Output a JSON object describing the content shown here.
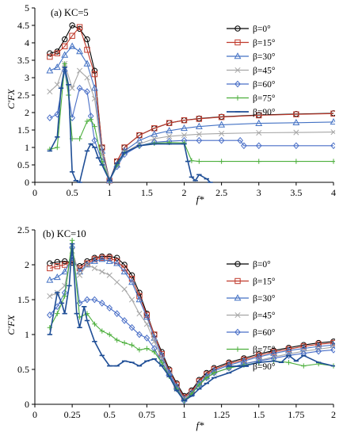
{
  "colors": {
    "b0": "#000000",
    "b15": "#c0392b",
    "b30": "#4472c4",
    "b45": "#a6a6a6",
    "b60": "#4a6fc7",
    "b75": "#4caf3c",
    "b90": "#1f4e96"
  },
  "chart_data": [
    {
      "type": "line",
      "panel_label": "(a) KC=5",
      "ylabel": "C'FX",
      "xlabel": "f*",
      "xlim": [
        0,
        4
      ],
      "ylim": [
        0,
        5
      ],
      "x_ticks": [
        "0",
        "0.5",
        "1",
        "1.5",
        "2",
        "2.5",
        "3",
        "3.5",
        "4"
      ],
      "y_ticks": [
        "0",
        "0.5",
        "1",
        "1.5",
        "2",
        "2.5",
        "3",
        "3.5",
        "4",
        "4.5",
        "5"
      ],
      "legend_position": "top-right",
      "series": [
        {
          "name": "β=0°",
          "key": "b0",
          "marker": "circle",
          "x": [
            0.2,
            0.3,
            0.4,
            0.5,
            0.6,
            0.7,
            0.8,
            0.9,
            1.0,
            1.1,
            1.2,
            1.4,
            1.6,
            1.8,
            2.0,
            2.2,
            2.5,
            3.0,
            3.5,
            4.0
          ],
          "y": [
            3.7,
            3.75,
            4.1,
            4.5,
            4.4,
            4.1,
            3.2,
            1.0,
            0.05,
            0.6,
            1.0,
            1.35,
            1.55,
            1.7,
            1.78,
            1.83,
            1.88,
            1.93,
            1.96,
            1.98
          ]
        },
        {
          "name": "β=15°",
          "key": "b15",
          "marker": "square",
          "x": [
            0.2,
            0.3,
            0.4,
            0.5,
            0.6,
            0.7,
            0.8,
            0.9,
            1.0,
            1.1,
            1.2,
            1.4,
            1.6,
            1.8,
            2.0,
            2.2,
            2.5,
            3.0,
            3.5,
            4.0
          ],
          "y": [
            3.6,
            3.7,
            3.9,
            4.2,
            4.45,
            3.8,
            3.1,
            1.0,
            0.05,
            0.6,
            1.0,
            1.35,
            1.55,
            1.7,
            1.78,
            1.82,
            1.87,
            1.92,
            1.95,
            1.97
          ]
        },
        {
          "name": "β=30°",
          "key": "b30",
          "marker": "triangle",
          "x": [
            0.2,
            0.3,
            0.4,
            0.5,
            0.6,
            0.7,
            0.8,
            0.9,
            1.0,
            1.1,
            1.2,
            1.4,
            1.6,
            1.8,
            2.0,
            2.2,
            2.5,
            3.0,
            3.5,
            4.0
          ],
          "y": [
            3.2,
            3.3,
            3.65,
            3.9,
            3.75,
            3.4,
            2.7,
            0.9,
            0.05,
            0.5,
            0.9,
            1.2,
            1.38,
            1.48,
            1.55,
            1.6,
            1.65,
            1.69,
            1.71,
            1.73
          ]
        },
        {
          "name": "β=45°",
          "key": "b45",
          "marker": "x",
          "x": [
            0.2,
            0.3,
            0.4,
            0.5,
            0.6,
            0.7,
            0.8,
            0.9,
            1.0,
            1.1,
            1.2,
            1.4,
            1.6,
            1.8,
            2.0,
            2.2,
            2.5,
            3.0,
            3.5,
            4.0
          ],
          "y": [
            2.6,
            2.8,
            3.4,
            2.7,
            3.2,
            3.0,
            2.4,
            0.8,
            0.05,
            0.5,
            0.85,
            1.1,
            1.25,
            1.32,
            1.35,
            1.38,
            1.4,
            1.42,
            1.43,
            1.44
          ]
        },
        {
          "name": "β=60°",
          "key": "b60",
          "marker": "diamond",
          "x": [
            0.2,
            0.3,
            0.4,
            0.5,
            0.6,
            0.7,
            0.75,
            0.8,
            0.9,
            1.0,
            1.1,
            1.2,
            1.4,
            1.6,
            1.8,
            2.0,
            2.2,
            2.5,
            2.75,
            2.8,
            3.0,
            3.5,
            4.0
          ],
          "y": [
            1.85,
            1.95,
            3.2,
            1.85,
            2.7,
            2.6,
            1.9,
            1.2,
            0.6,
            0.05,
            0.45,
            0.8,
            1.05,
            1.15,
            1.18,
            1.2,
            1.2,
            1.2,
            1.2,
            1.05,
            1.05,
            1.05,
            1.05
          ]
        },
        {
          "name": "β=75°",
          "key": "b75",
          "marker": "plus",
          "x": [
            0.2,
            0.3,
            0.4,
            0.45,
            0.5,
            0.6,
            0.7,
            0.75,
            0.8,
            0.9,
            1.0,
            1.1,
            1.2,
            1.4,
            1.6,
            1.8,
            2.0,
            2.1,
            2.2,
            2.5,
            3.0,
            3.5,
            4.0
          ],
          "y": [
            0.95,
            1.0,
            3.4,
            2.5,
            1.25,
            1.25,
            1.75,
            1.8,
            1.6,
            0.6,
            0.05,
            0.5,
            0.85,
            1.05,
            1.12,
            1.14,
            1.13,
            0.62,
            0.6,
            0.6,
            0.6,
            0.6,
            0.6
          ]
        },
        {
          "name": "β=90°",
          "key": "b90",
          "marker": "dash",
          "x": [
            0.2,
            0.3,
            0.35,
            0.4,
            0.45,
            0.5,
            0.55,
            0.6,
            0.7,
            0.75,
            0.8,
            0.85,
            0.9,
            1.0,
            1.1,
            1.2,
            1.4,
            1.6,
            1.8,
            2.0,
            2.05,
            2.1,
            2.15,
            2.2,
            2.3,
            2.35
          ],
          "y": [
            0.9,
            1.3,
            2.7,
            3.3,
            2.8,
            0.3,
            0.05,
            0.0,
            0.9,
            1.1,
            1.0,
            0.7,
            0.5,
            0.05,
            0.55,
            0.85,
            1.05,
            1.1,
            1.1,
            1.1,
            0.6,
            0.15,
            0.05,
            0.22,
            0.1,
            0.0
          ]
        }
      ]
    },
    {
      "type": "line",
      "panel_label": "(b) KC=10",
      "ylabel": "C'FX",
      "xlabel": "f*",
      "xlim": [
        0,
        2
      ],
      "ylim": [
        0,
        2.5
      ],
      "x_ticks": [
        "0",
        "0.25",
        "0.5",
        "0.75",
        "1",
        "1.25",
        "1.5",
        "1.75",
        "2"
      ],
      "y_ticks": [
        "0",
        "0.5",
        "1",
        "1.5",
        "2",
        "2.5"
      ],
      "legend_position": "top-right",
      "series": [
        {
          "name": "β=0°",
          "key": "b0",
          "marker": "circle",
          "x": [
            0.1,
            0.15,
            0.2,
            0.25,
            0.3,
            0.35,
            0.4,
            0.45,
            0.5,
            0.55,
            0.6,
            0.65,
            0.7,
            0.75,
            0.8,
            0.85,
            0.9,
            0.95,
            1.0,
            1.05,
            1.1,
            1.15,
            1.2,
            1.3,
            1.4,
            1.5,
            1.6,
            1.7,
            1.8,
            1.9,
            2.0
          ],
          "y": [
            2.02,
            2.04,
            2.05,
            2.03,
            1.98,
            2.05,
            2.1,
            2.12,
            2.12,
            2.1,
            2.0,
            1.85,
            1.6,
            1.3,
            1.0,
            0.75,
            0.5,
            0.3,
            0.12,
            0.2,
            0.35,
            0.45,
            0.52,
            0.6,
            0.66,
            0.72,
            0.77,
            0.81,
            0.85,
            0.88,
            0.9
          ]
        },
        {
          "name": "β=15°",
          "key": "b15",
          "marker": "square",
          "x": [
            0.1,
            0.15,
            0.2,
            0.25,
            0.3,
            0.35,
            0.4,
            0.45,
            0.5,
            0.55,
            0.6,
            0.65,
            0.7,
            0.75,
            0.8,
            0.85,
            0.9,
            0.95,
            1.0,
            1.05,
            1.1,
            1.15,
            1.2,
            1.3,
            1.4,
            1.5,
            1.6,
            1.7,
            1.8,
            1.9,
            2.0
          ],
          "y": [
            1.95,
            1.98,
            2.0,
            2.05,
            1.95,
            2.02,
            2.08,
            2.1,
            2.1,
            2.05,
            1.95,
            1.8,
            1.55,
            1.28,
            1.0,
            0.72,
            0.48,
            0.28,
            0.1,
            0.18,
            0.33,
            0.43,
            0.5,
            0.58,
            0.64,
            0.7,
            0.75,
            0.79,
            0.83,
            0.86,
            0.88
          ]
        },
        {
          "name": "β=30°",
          "key": "b30",
          "marker": "triangle",
          "x": [
            0.1,
            0.15,
            0.2,
            0.25,
            0.3,
            0.35,
            0.4,
            0.45,
            0.5,
            0.55,
            0.6,
            0.65,
            0.7,
            0.75,
            0.8,
            0.85,
            0.9,
            0.95,
            1.0,
            1.05,
            1.1,
            1.15,
            1.2,
            1.3,
            1.4,
            1.5,
            1.6,
            1.7,
            1.8,
            1.9,
            2.0
          ],
          "y": [
            1.78,
            1.82,
            1.9,
            2.1,
            1.9,
            2.0,
            2.05,
            2.08,
            2.05,
            2.02,
            1.9,
            1.75,
            1.5,
            1.25,
            0.95,
            0.7,
            0.45,
            0.25,
            0.08,
            0.16,
            0.3,
            0.4,
            0.48,
            0.56,
            0.62,
            0.68,
            0.73,
            0.77,
            0.8,
            0.83,
            0.85
          ]
        },
        {
          "name": "β=45°",
          "key": "b45",
          "marker": "x",
          "x": [
            0.1,
            0.15,
            0.2,
            0.25,
            0.3,
            0.35,
            0.4,
            0.45,
            0.5,
            0.55,
            0.6,
            0.65,
            0.7,
            0.75,
            0.8,
            0.85,
            0.9,
            0.95,
            1.0,
            1.05,
            1.1,
            1.15,
            1.2,
            1.3,
            1.4,
            1.5,
            1.6,
            1.7,
            1.8,
            1.9,
            2.0
          ],
          "y": [
            1.55,
            1.6,
            1.7,
            2.2,
            1.85,
            2.0,
            1.95,
            1.9,
            1.85,
            1.75,
            1.65,
            1.5,
            1.3,
            1.15,
            0.9,
            0.65,
            0.42,
            0.22,
            0.08,
            0.15,
            0.28,
            0.38,
            0.45,
            0.52,
            0.58,
            0.63,
            0.68,
            0.72,
            0.76,
            0.79,
            0.82
          ]
        },
        {
          "name": "β=60°",
          "key": "b60",
          "marker": "diamond",
          "x": [
            0.1,
            0.15,
            0.2,
            0.25,
            0.3,
            0.35,
            0.4,
            0.45,
            0.5,
            0.55,
            0.6,
            0.65,
            0.7,
            0.75,
            0.8,
            0.85,
            0.9,
            0.95,
            1.0,
            1.05,
            1.1,
            1.15,
            1.2,
            1.3,
            1.4,
            1.5,
            1.6,
            1.7,
            1.8,
            1.9,
            2.0
          ],
          "y": [
            1.28,
            1.4,
            1.6,
            2.25,
            1.45,
            1.5,
            1.5,
            1.45,
            1.38,
            1.3,
            1.2,
            1.1,
            1.0,
            0.95,
            0.8,
            0.6,
            0.42,
            0.22,
            0.05,
            0.15,
            0.28,
            0.38,
            0.45,
            0.52,
            0.58,
            0.62,
            0.66,
            0.7,
            0.73,
            0.76,
            0.78
          ]
        },
        {
          "name": "β=75°",
          "key": "b75",
          "marker": "plus",
          "x": [
            0.1,
            0.15,
            0.2,
            0.25,
            0.3,
            0.35,
            0.4,
            0.45,
            0.5,
            0.55,
            0.6,
            0.65,
            0.7,
            0.75,
            0.8,
            0.85,
            0.9,
            0.95,
            1.0,
            1.05,
            1.1,
            1.15,
            1.2,
            1.3,
            1.4,
            1.5,
            1.6,
            1.7,
            1.8,
            1.9,
            2.0
          ],
          "y": [
            1.1,
            1.3,
            1.55,
            2.35,
            1.25,
            1.3,
            1.15,
            1.05,
            1.0,
            0.92,
            0.88,
            0.85,
            0.78,
            0.8,
            0.75,
            0.6,
            0.4,
            0.22,
            0.05,
            0.15,
            0.28,
            0.38,
            0.45,
            0.52,
            0.56,
            0.6,
            0.62,
            0.6,
            0.55,
            0.58,
            0.55
          ]
        },
        {
          "name": "β=90°",
          "key": "b90",
          "marker": "dash",
          "x": [
            0.1,
            0.15,
            0.18,
            0.2,
            0.23,
            0.25,
            0.28,
            0.3,
            0.33,
            0.35,
            0.4,
            0.45,
            0.5,
            0.55,
            0.6,
            0.65,
            0.7,
            0.75,
            0.8,
            0.85,
            0.9,
            0.95,
            1.0,
            1.05,
            1.1,
            1.15,
            1.2,
            1.3,
            1.4,
            1.5,
            1.6,
            1.65,
            1.7,
            1.75,
            1.8,
            1.9,
            2.0
          ],
          "y": [
            1.0,
            1.6,
            1.45,
            1.3,
            1.7,
            2.3,
            1.3,
            1.1,
            1.4,
            1.2,
            0.9,
            0.7,
            0.55,
            0.55,
            0.62,
            0.6,
            0.55,
            0.62,
            0.65,
            0.55,
            0.4,
            0.2,
            0.05,
            0.12,
            0.22,
            0.3,
            0.38,
            0.45,
            0.55,
            0.6,
            0.62,
            0.6,
            0.7,
            0.62,
            0.7,
            0.6,
            0.55
          ]
        }
      ]
    }
  ]
}
